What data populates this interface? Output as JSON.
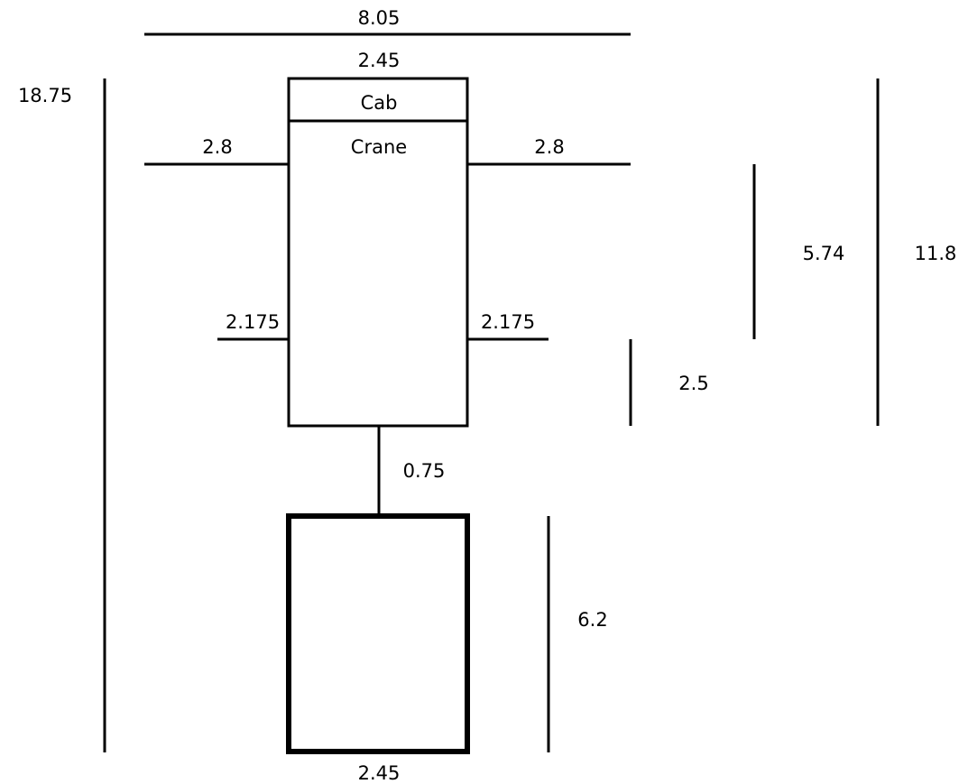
{
  "dimensions": {
    "overall_width": "8.05",
    "truck_width_top": "2.45",
    "overall_length": "18.75",
    "cab": "Cab",
    "crane": "Crane",
    "crane_outrigger_left": "2.8",
    "crane_outrigger_right": "2.8",
    "rear_outrigger_left": "2.175",
    "rear_outrigger_right": "2.175",
    "outrigger_spacing": "5.74",
    "rear_overhang": "2.5",
    "truck_length": "11.8",
    "hitch_gap": "0.75",
    "trailer_length": "6.2",
    "trailer_width": "2.45"
  },
  "colors": {
    "line": "#000000",
    "background": "#ffffff"
  }
}
